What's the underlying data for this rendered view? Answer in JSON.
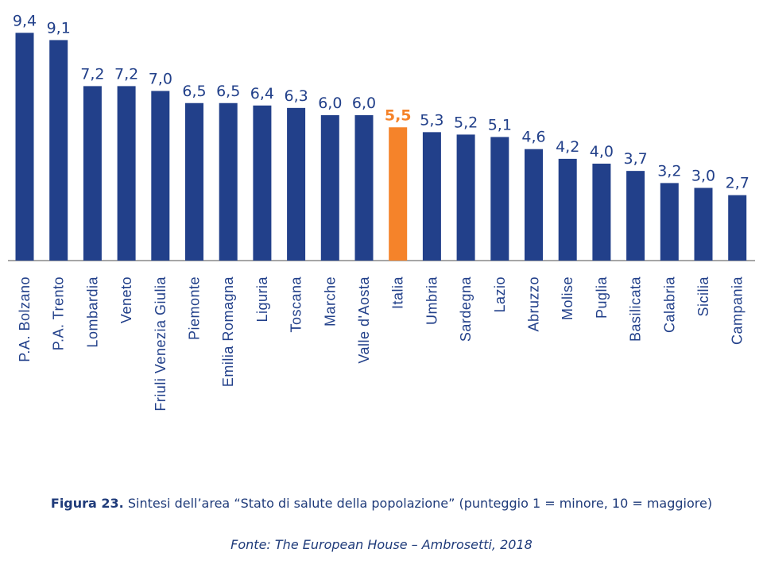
{
  "chart_data": {
    "type": "bar",
    "categories": [
      "P.A. Bolzano",
      "P.A. Trento",
      "Lombardia",
      "Veneto",
      "Friuli Venezia Giulia",
      "Piemonte",
      "Emilia Romagna",
      "Liguria",
      "Toscana",
      "Marche",
      "Valle d'Aosta",
      "Italia",
      "Umbria",
      "Sardegna",
      "Lazio",
      "Abruzzo",
      "Molise",
      "Puglia",
      "Basilicata",
      "Calabria",
      "Sicilia",
      "Campania"
    ],
    "values": [
      9.4,
      9.1,
      7.2,
      7.2,
      7.0,
      6.5,
      6.5,
      6.4,
      6.3,
      6.0,
      6.0,
      5.5,
      5.3,
      5.2,
      5.1,
      4.6,
      4.2,
      4.0,
      3.7,
      3.2,
      3.0,
      2.7
    ],
    "value_labels": [
      "9,4",
      "9,1",
      "7,2",
      "7,2",
      "7,0",
      "6,5",
      "6,5",
      "6,4",
      "6,3",
      "6,0",
      "6,0",
      "5,5",
      "5,3",
      "5,2",
      "5,1",
      "4,6",
      "4,2",
      "4,0",
      "3,7",
      "3,2",
      "3,0",
      "2,7"
    ],
    "highlight_category": "Italia",
    "ylim": [
      0,
      10
    ],
    "grid": false,
    "legend": "none",
    "colors": {
      "bar": "#22408a",
      "highlight": "#f5832a",
      "label": "#22408a",
      "axis": "#8a8a8a"
    }
  },
  "caption": {
    "figure_label": "Figura 23.",
    "text": "Sintesi dell’area “Stato di salute della popolazione” (punteggio 1 = minore, 10 = maggiore)",
    "source": "Fonte: The European House – Ambrosetti, 2018"
  }
}
